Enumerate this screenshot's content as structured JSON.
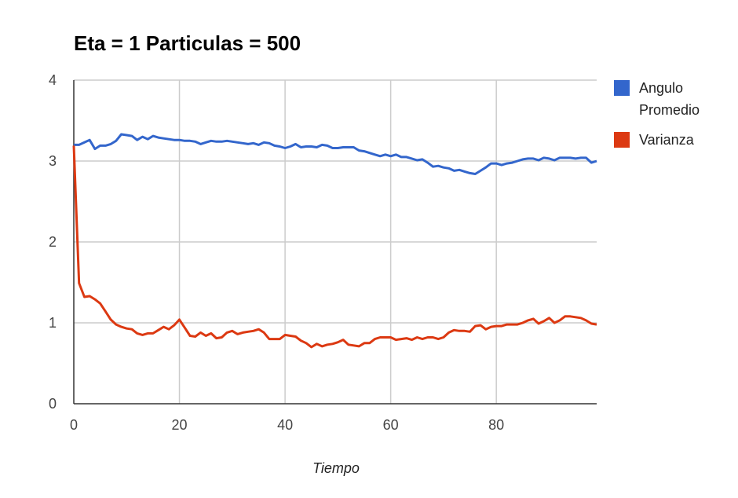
{
  "chart_data": {
    "type": "line",
    "title": "Eta = 1 Particulas = 500",
    "xlabel": "Tiempo",
    "ylabel": "",
    "xlim": [
      0,
      99
    ],
    "ylim": [
      0,
      4
    ],
    "xticks": [
      0,
      20,
      40,
      60,
      80
    ],
    "yticks": [
      0,
      1,
      2,
      3,
      4
    ],
    "grid": true,
    "legend_position": "right",
    "x": [
      0,
      1,
      2,
      3,
      4,
      5,
      6,
      7,
      8,
      9,
      10,
      11,
      12,
      13,
      14,
      15,
      16,
      17,
      18,
      19,
      20,
      21,
      22,
      23,
      24,
      25,
      26,
      27,
      28,
      29,
      30,
      31,
      32,
      33,
      34,
      35,
      36,
      37,
      38,
      39,
      40,
      41,
      42,
      43,
      44,
      45,
      46,
      47,
      48,
      49,
      50,
      51,
      52,
      53,
      54,
      55,
      56,
      57,
      58,
      59,
      60,
      61,
      62,
      63,
      64,
      65,
      66,
      67,
      68,
      69,
      70,
      71,
      72,
      73,
      74,
      75,
      76,
      77,
      78,
      79,
      80,
      81,
      82,
      83,
      84,
      85,
      86,
      87,
      88,
      89,
      90,
      91,
      92,
      93,
      94,
      95,
      96,
      97,
      98,
      99
    ],
    "series": [
      {
        "name": "Angulo Promedio",
        "color": "#3366cc",
        "values": [
          3.2,
          3.2,
          3.23,
          3.26,
          3.15,
          3.19,
          3.19,
          3.21,
          3.25,
          3.33,
          3.32,
          3.31,
          3.26,
          3.3,
          3.27,
          3.31,
          3.29,
          3.28,
          3.27,
          3.26,
          3.26,
          3.25,
          3.25,
          3.24,
          3.21,
          3.23,
          3.25,
          3.24,
          3.24,
          3.25,
          3.24,
          3.23,
          3.22,
          3.21,
          3.22,
          3.2,
          3.23,
          3.22,
          3.19,
          3.18,
          3.16,
          3.18,
          3.21,
          3.17,
          3.18,
          3.18,
          3.17,
          3.2,
          3.19,
          3.16,
          3.16,
          3.17,
          3.17,
          3.17,
          3.13,
          3.12,
          3.1,
          3.08,
          3.06,
          3.08,
          3.06,
          3.08,
          3.05,
          3.05,
          3.03,
          3.01,
          3.02,
          2.98,
          2.93,
          2.94,
          2.92,
          2.91,
          2.88,
          2.89,
          2.87,
          2.85,
          2.84,
          2.88,
          2.92,
          2.97,
          2.97,
          2.95,
          2.97,
          2.98,
          3.0,
          3.02,
          3.03,
          3.03,
          3.01,
          3.04,
          3.03,
          3.01,
          3.04,
          3.04,
          3.04,
          3.03,
          3.04,
          3.04,
          2.98,
          3.0
        ]
      },
      {
        "name": "Varianza",
        "color": "#dc3912",
        "values": [
          3.19,
          1.49,
          1.32,
          1.33,
          1.29,
          1.24,
          1.14,
          1.04,
          0.98,
          0.95,
          0.93,
          0.92,
          0.87,
          0.85,
          0.87,
          0.87,
          0.91,
          0.95,
          0.92,
          0.97,
          1.04,
          0.94,
          0.84,
          0.83,
          0.88,
          0.84,
          0.87,
          0.81,
          0.82,
          0.88,
          0.9,
          0.86,
          0.88,
          0.89,
          0.9,
          0.92,
          0.88,
          0.8,
          0.8,
          0.8,
          0.85,
          0.84,
          0.83,
          0.78,
          0.75,
          0.7,
          0.74,
          0.71,
          0.73,
          0.74,
          0.76,
          0.79,
          0.73,
          0.72,
          0.71,
          0.75,
          0.75,
          0.8,
          0.82,
          0.82,
          0.82,
          0.79,
          0.8,
          0.81,
          0.79,
          0.82,
          0.8,
          0.82,
          0.82,
          0.8,
          0.82,
          0.88,
          0.91,
          0.9,
          0.9,
          0.89,
          0.96,
          0.97,
          0.92,
          0.95,
          0.96,
          0.96,
          0.98,
          0.98,
          0.98,
          1.0,
          1.03,
          1.05,
          0.99,
          1.02,
          1.06,
          1.0,
          1.03,
          1.08,
          1.08,
          1.07,
          1.06,
          1.03,
          0.99,
          0.98
        ]
      }
    ]
  }
}
